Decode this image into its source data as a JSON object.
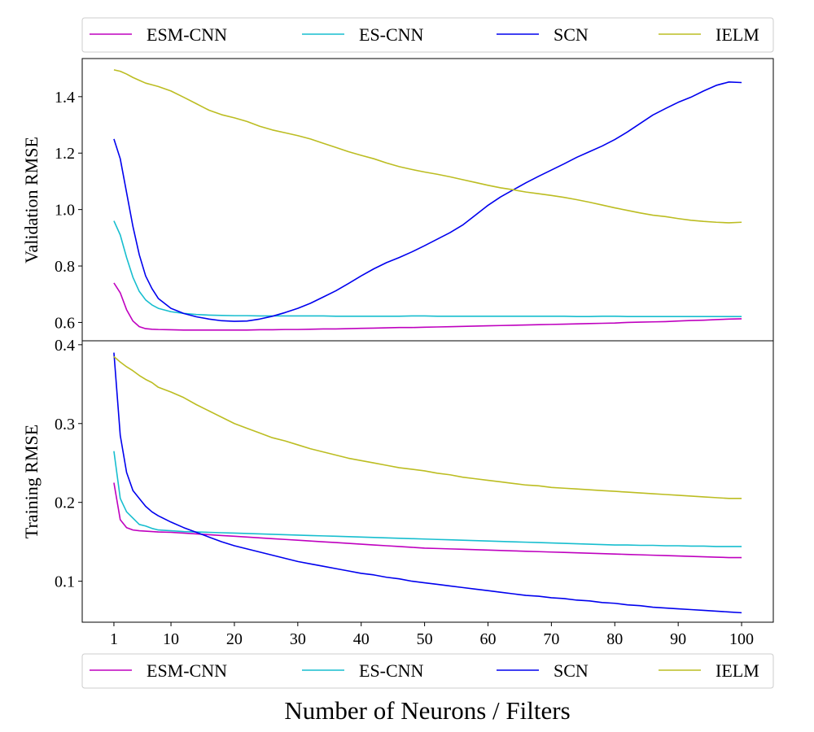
{
  "chart_data": [
    {
      "type": "line",
      "ylabel": "Validation RMSE",
      "ylim": [
        0.535,
        1.535
      ],
      "yticks": [
        "0.6",
        "0.8",
        "1.0",
        "1.2",
        "1.4"
      ],
      "x": [
        1,
        2,
        3,
        4,
        5,
        6,
        7,
        8,
        10,
        12,
        14,
        16,
        18,
        20,
        22,
        24,
        26,
        28,
        30,
        32,
        34,
        36,
        38,
        40,
        42,
        44,
        46,
        48,
        50,
        52,
        54,
        56,
        58,
        60,
        62,
        64,
        66,
        68,
        70,
        72,
        74,
        76,
        78,
        80,
        82,
        84,
        86,
        88,
        90,
        92,
        94,
        96,
        98,
        100
      ],
      "series": [
        {
          "name": "ESM-CNN",
          "color": "#bf00bf",
          "values": [
            0.74,
            0.705,
            0.645,
            0.605,
            0.585,
            0.578,
            0.576,
            0.575,
            0.574,
            0.573,
            0.573,
            0.573,
            0.573,
            0.573,
            0.573,
            0.574,
            0.574,
            0.575,
            0.575,
            0.576,
            0.577,
            0.577,
            0.578,
            0.579,
            0.58,
            0.581,
            0.582,
            0.582,
            0.583,
            0.584,
            0.585,
            0.586,
            0.587,
            0.588,
            0.589,
            0.59,
            0.591,
            0.592,
            0.593,
            0.594,
            0.595,
            0.596,
            0.597,
            0.598,
            0.6,
            0.601,
            0.602,
            0.603,
            0.605,
            0.607,
            0.608,
            0.61,
            0.612,
            0.613
          ]
        },
        {
          "name": "ES-CNN",
          "color": "#17becf",
          "values": [
            0.96,
            0.91,
            0.83,
            0.76,
            0.71,
            0.68,
            0.662,
            0.65,
            0.638,
            0.632,
            0.628,
            0.626,
            0.625,
            0.624,
            0.624,
            0.623,
            0.623,
            0.623,
            0.623,
            0.623,
            0.623,
            0.622,
            0.622,
            0.622,
            0.622,
            0.622,
            0.622,
            0.623,
            0.623,
            0.622,
            0.622,
            0.622,
            0.622,
            0.622,
            0.622,
            0.622,
            0.622,
            0.622,
            0.622,
            0.622,
            0.621,
            0.621,
            0.622,
            0.622,
            0.621,
            0.621,
            0.621,
            0.621,
            0.621,
            0.621,
            0.621,
            0.621,
            0.621,
            0.621
          ]
        },
        {
          "name": "SCN",
          "color": "#0000ee",
          "values": [
            1.25,
            1.18,
            1.06,
            0.94,
            0.84,
            0.765,
            0.72,
            0.685,
            0.65,
            0.632,
            0.62,
            0.612,
            0.606,
            0.604,
            0.605,
            0.612,
            0.622,
            0.635,
            0.65,
            0.668,
            0.69,
            0.712,
            0.738,
            0.765,
            0.79,
            0.812,
            0.83,
            0.85,
            0.872,
            0.895,
            0.918,
            0.945,
            0.98,
            1.015,
            1.045,
            1.07,
            1.095,
            1.118,
            1.14,
            1.162,
            1.185,
            1.205,
            1.225,
            1.248,
            1.275,
            1.305,
            1.335,
            1.358,
            1.38,
            1.398,
            1.42,
            1.44,
            1.452,
            1.45
          ]
        },
        {
          "name": "IELM",
          "color": "#bcbd22",
          "values": [
            1.495,
            1.49,
            1.48,
            1.468,
            1.458,
            1.448,
            1.442,
            1.436,
            1.42,
            1.398,
            1.375,
            1.352,
            1.336,
            1.325,
            1.312,
            1.295,
            1.282,
            1.272,
            1.262,
            1.25,
            1.235,
            1.22,
            1.205,
            1.192,
            1.18,
            1.165,
            1.152,
            1.142,
            1.133,
            1.125,
            1.116,
            1.106,
            1.096,
            1.086,
            1.077,
            1.07,
            1.062,
            1.056,
            1.05,
            1.043,
            1.035,
            1.026,
            1.016,
            1.006,
            0.997,
            0.988,
            0.98,
            0.975,
            0.968,
            0.962,
            0.958,
            0.955,
            0.953,
            0.955
          ]
        }
      ]
    },
    {
      "type": "line",
      "ylabel": "Training RMSE",
      "xlabel": "Number of Neurons / Filters",
      "xlim": [
        -4,
        105
      ],
      "xticks": [
        1,
        10,
        20,
        30,
        40,
        50,
        60,
        70,
        80,
        90,
        100
      ],
      "ylim": [
        0.048,
        0.405
      ],
      "yticks": [
        "0.1",
        "0.2",
        "0.3",
        "0.4"
      ],
      "x": [
        1,
        2,
        3,
        4,
        5,
        6,
        7,
        8,
        10,
        12,
        14,
        16,
        18,
        20,
        22,
        24,
        26,
        28,
        30,
        32,
        34,
        36,
        38,
        40,
        42,
        44,
        46,
        48,
        50,
        52,
        54,
        56,
        58,
        60,
        62,
        64,
        66,
        68,
        70,
        72,
        74,
        76,
        78,
        80,
        82,
        84,
        86,
        88,
        90,
        92,
        94,
        96,
        98,
        100
      ],
      "series": [
        {
          "name": "ESM-CNN",
          "color": "#bf00bf",
          "values": [
            0.225,
            0.178,
            0.168,
            0.165,
            0.164,
            0.1635,
            0.163,
            0.1625,
            0.162,
            0.161,
            0.16,
            0.159,
            0.158,
            0.157,
            0.156,
            0.155,
            0.154,
            0.153,
            0.152,
            0.151,
            0.15,
            0.149,
            0.148,
            0.147,
            0.146,
            0.145,
            0.144,
            0.143,
            0.142,
            0.1415,
            0.141,
            0.1405,
            0.14,
            0.1395,
            0.139,
            0.1385,
            0.138,
            0.1375,
            0.137,
            0.1365,
            0.136,
            0.1355,
            0.135,
            0.1345,
            0.134,
            0.1335,
            0.133,
            0.1325,
            0.132,
            0.1315,
            0.131,
            0.1305,
            0.13,
            0.13
          ]
        },
        {
          "name": "ES-CNN",
          "color": "#17becf",
          "values": [
            0.265,
            0.205,
            0.188,
            0.18,
            0.172,
            0.17,
            0.167,
            0.165,
            0.164,
            0.163,
            0.1625,
            0.162,
            0.1615,
            0.161,
            0.1605,
            0.16,
            0.1595,
            0.159,
            0.1585,
            0.158,
            0.1575,
            0.157,
            0.1565,
            0.156,
            0.1555,
            0.155,
            0.1545,
            0.154,
            0.1535,
            0.153,
            0.1525,
            0.152,
            0.1515,
            0.151,
            0.1505,
            0.15,
            0.1495,
            0.149,
            0.1485,
            0.148,
            0.1475,
            0.147,
            0.1465,
            0.146,
            0.146,
            0.1455,
            0.1455,
            0.145,
            0.145,
            0.1445,
            0.1445,
            0.144,
            0.144,
            0.144
          ]
        },
        {
          "name": "SCN",
          "color": "#0000ee",
          "values": [
            0.39,
            0.285,
            0.238,
            0.215,
            0.205,
            0.195,
            0.188,
            0.183,
            0.175,
            0.168,
            0.162,
            0.156,
            0.15,
            0.145,
            0.141,
            0.137,
            0.133,
            0.129,
            0.125,
            0.122,
            0.119,
            0.116,
            0.113,
            0.11,
            0.108,
            0.105,
            0.103,
            0.1,
            0.098,
            0.096,
            0.094,
            0.092,
            0.09,
            0.088,
            0.086,
            0.084,
            0.082,
            0.081,
            0.079,
            0.078,
            0.076,
            0.075,
            0.073,
            0.072,
            0.07,
            0.069,
            0.067,
            0.066,
            0.065,
            0.064,
            0.063,
            0.062,
            0.061,
            0.06
          ]
        },
        {
          "name": "IELM",
          "color": "#bcbd22",
          "values": [
            0.385,
            0.378,
            0.372,
            0.367,
            0.361,
            0.356,
            0.352,
            0.346,
            0.34,
            0.333,
            0.324,
            0.316,
            0.308,
            0.3,
            0.294,
            0.288,
            0.282,
            0.278,
            0.273,
            0.268,
            0.264,
            0.26,
            0.256,
            0.253,
            0.25,
            0.247,
            0.244,
            0.242,
            0.24,
            0.237,
            0.235,
            0.232,
            0.23,
            0.228,
            0.226,
            0.224,
            0.222,
            0.221,
            0.219,
            0.218,
            0.217,
            0.216,
            0.215,
            0.214,
            0.213,
            0.212,
            0.211,
            0.21,
            0.209,
            0.208,
            0.207,
            0.206,
            0.205,
            0.205
          ]
        }
      ]
    }
  ],
  "legend_top": [
    "ESM-CNN",
    "ES-CNN",
    "SCN",
    "IELM"
  ],
  "legend_bottom": [
    "ESM-CNN",
    "ES-CNN",
    "SCN",
    "IELM"
  ],
  "legend_placement": [
    "top",
    "bottom"
  ],
  "grid": false
}
